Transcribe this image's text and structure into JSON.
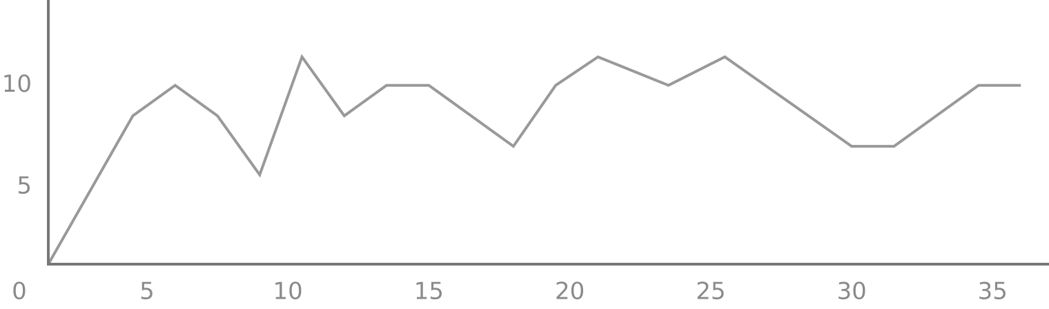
{
  "chart_data": {
    "type": "line",
    "x": [
      1.5,
      4.5,
      6,
      7.5,
      9,
      10.5,
      12,
      13.5,
      15,
      18,
      19.5,
      21,
      23.5,
      25.5,
      30,
      31.5,
      34.5,
      36
    ],
    "series": [
      {
        "color": "#999999",
        "values": [
          1.2,
          8.5,
          10,
          8.5,
          5.6,
          11.4,
          8.5,
          10,
          10,
          7,
          10,
          11.4,
          10,
          11.4,
          7,
          7,
          10,
          10
        ]
      }
    ],
    "xlim": [
      1.5,
      37
    ],
    "ylim": [
      1.2,
      14.2
    ],
    "xticks": [
      0,
      5,
      10,
      15,
      20,
      25,
      30,
      35
    ],
    "yticks": [
      5,
      10
    ],
    "axis_color": "#777777"
  }
}
